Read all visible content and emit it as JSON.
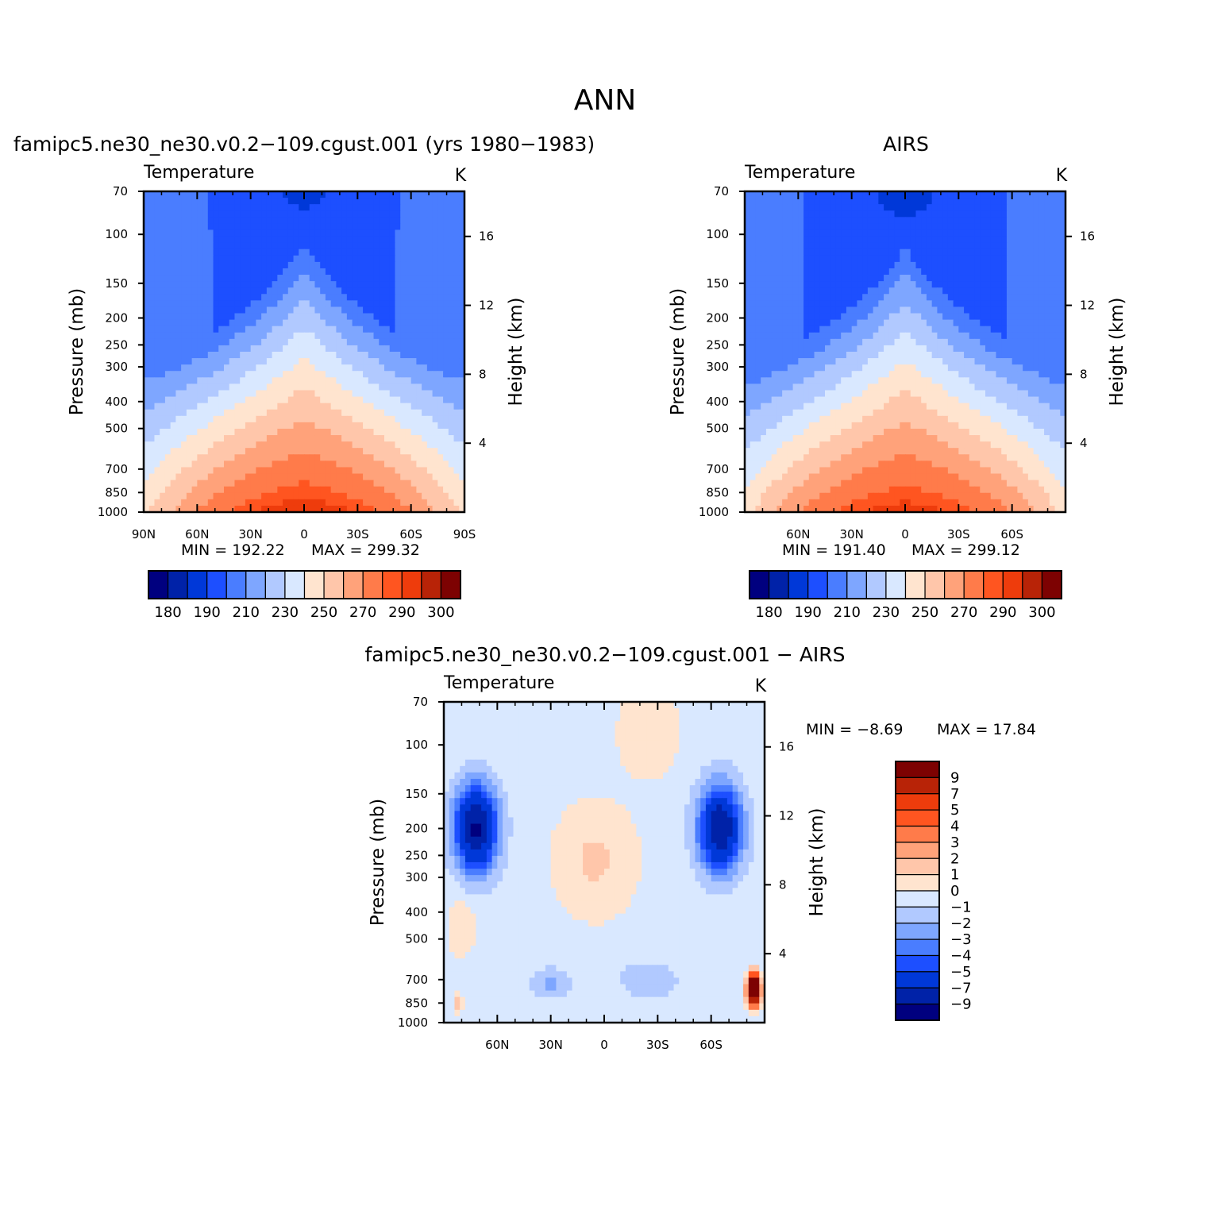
{
  "figure_title": "ANN",
  "chart_data": [
    {
      "type": "heatmap",
      "subtitle": "famipc5.ne30_ne30.v0.2−109.cgust.001  (yrs  1980−1983)",
      "panel_label": "Temperature",
      "units": "K",
      "xlabel": "",
      "ylabel": "Pressure  (mb)",
      "ylabel_right": "Height  (km)",
      "x_ticks": [
        "90N",
        "60N",
        "30N",
        "0",
        "30S",
        "60S",
        "90S"
      ],
      "x_tick_values": [
        90,
        60,
        30,
        0,
        -30,
        -60,
        -90
      ],
      "xlim": [
        90,
        -90
      ],
      "pressure_ticks": [
        70,
        100,
        150,
        200,
        250,
        300,
        400,
        500,
        700,
        850,
        1000
      ],
      "pressure_tick_labels": [
        "70",
        "100",
        "150",
        "200",
        "250",
        "300",
        "400",
        "500",
        "700",
        "850",
        "1000"
      ],
      "height_ticks": [
        16,
        12,
        8,
        4
      ],
      "height_tick_labels": [
        "16",
        "12",
        "8",
        "4"
      ],
      "ylim": [
        1000,
        70
      ],
      "levels": [
        180,
        190,
        200,
        210,
        220,
        230,
        240,
        250,
        260,
        270,
        280,
        290,
        295,
        300
      ],
      "field": {
        "t_bottom": 299,
        "t_tropopause": 205,
        "t_top": 197,
        "tropo_poleward": 218
      },
      "stats": {
        "min_label": "MIN  =  192.22",
        "max_label": "MAX  =  299.32",
        "min": 192.22,
        "max": 299.32
      }
    },
    {
      "type": "heatmap",
      "subtitle": "AIRS",
      "panel_label": "Temperature",
      "units": "K",
      "xlabel": "",
      "ylabel": "Pressure  (mb)",
      "ylabel_right": "Height  (km)",
      "x_ticks": [
        "60N",
        "30N",
        "0",
        "30S",
        "60S"
      ],
      "x_tick_values": [
        60,
        30,
        0,
        -30,
        -60
      ],
      "xlim": [
        90,
        -90
      ],
      "pressure_ticks": [
        70,
        100,
        150,
        200,
        250,
        300,
        400,
        500,
        700,
        850,
        1000
      ],
      "pressure_tick_labels": [
        "70",
        "100",
        "150",
        "200",
        "250",
        "300",
        "400",
        "500",
        "700",
        "850",
        "1000"
      ],
      "height_ticks": [
        16,
        12,
        8,
        4
      ],
      "height_tick_labels": [
        "16",
        "12",
        "8",
        "4"
      ],
      "ylim": [
        1000,
        70
      ],
      "levels": [
        180,
        190,
        200,
        210,
        220,
        230,
        240,
        250,
        260,
        270,
        280,
        290,
        295,
        300
      ],
      "field": {
        "t_bottom": 298,
        "t_tropopause": 204,
        "t_top": 196,
        "tropo_poleward": 216
      },
      "stats": {
        "min_label": "MIN  =  191.40",
        "max_label": "MAX  =  299.12",
        "min": 191.4,
        "max": 299.12
      }
    },
    {
      "type": "heatmap",
      "subtitle": "famipc5.ne30_ne30.v0.2−109.cgust.001  −  AIRS",
      "panel_label": "Temperature",
      "units": "K",
      "xlabel": "",
      "ylabel": "Pressure  (mb)",
      "ylabel_right": "Height  (km)",
      "x_ticks": [
        "60N",
        "30N",
        "0",
        "30S",
        "60S"
      ],
      "x_tick_values": [
        60,
        30,
        0,
        -30,
        -60
      ],
      "xlim": [
        90,
        -90
      ],
      "pressure_ticks": [
        70,
        100,
        150,
        200,
        250,
        300,
        400,
        500,
        700,
        850,
        1000
      ],
      "pressure_tick_labels": [
        "70",
        "100",
        "150",
        "200",
        "250",
        "300",
        "400",
        "500",
        "700",
        "850",
        "1000"
      ],
      "height_ticks": [
        16,
        12,
        8,
        4
      ],
      "height_tick_labels": [
        "16",
        "12",
        "8",
        "4"
      ],
      "ylim": [
        1000,
        70
      ],
      "levels": [
        -9,
        -7,
        -5,
        -4,
        -3,
        -2,
        -1,
        0,
        1,
        2,
        3,
        4,
        5,
        7,
        9
      ],
      "features": [
        {
          "lat": 72,
          "p": 200,
          "amp": -9.0,
          "wlat": 12,
          "wp": 0.35
        },
        {
          "lat": -65,
          "p": 200,
          "amp": -8.5,
          "wlat": 12,
          "wp": 0.35
        },
        {
          "lat": 5,
          "p": 260,
          "amp": 1.6,
          "wlat": 22,
          "wp": 0.45
        },
        {
          "lat": -25,
          "p": 90,
          "amp": 1.4,
          "wlat": 16,
          "wp": 0.35
        },
        {
          "lat": 30,
          "p": 720,
          "amp": -1.8,
          "wlat": 12,
          "wp": 0.12
        },
        {
          "lat": -25,
          "p": 700,
          "amp": -1.6,
          "wlat": 16,
          "wp": 0.15
        },
        {
          "lat": 80,
          "p": 450,
          "amp": 1.2,
          "wlat": 8,
          "wp": 0.25
        },
        {
          "lat": -84,
          "p": 760,
          "amp": 17.8,
          "wlat": 3.5,
          "wp": 0.12
        },
        {
          "lat": 82,
          "p": 850,
          "amp": 2.5,
          "wlat": 2.5,
          "wp": 0.07
        }
      ],
      "stats": {
        "min_label": "MIN  =     −8.69",
        "max_label": "MAX  =     17.84",
        "min": -8.69,
        "max": 17.84
      },
      "colorbar_labels": [
        "9",
        "7",
        "5",
        "4",
        "3",
        "2",
        "1",
        "0",
        "−1",
        "−2",
        "−3",
        "−4",
        "−5",
        "−7",
        "−9"
      ]
    }
  ],
  "colorbar_top": {
    "labels": [
      "180",
      "190",
      "210",
      "230",
      "250",
      "270",
      "290",
      "300"
    ]
  },
  "colors": {
    "abs_palette": [
      "#00007f",
      "#0022a8",
      "#0038d8",
      "#1d4fff",
      "#4a7dff",
      "#7ea6ff",
      "#b1c9ff",
      "#d9e8ff",
      "#ffe4cf",
      "#ffc6aa",
      "#ffa27a",
      "#ff7b4a",
      "#ff5520",
      "#ee3c0c",
      "#b82307",
      "#7d0202"
    ],
    "diff_palette": [
      "#00007f",
      "#0022a8",
      "#0038d8",
      "#1d4fff",
      "#4a7dff",
      "#7ea6ff",
      "#b1c9ff",
      "#d9e8ff",
      "#ffe4cf",
      "#ffc6aa",
      "#ffa27a",
      "#ff7b4a",
      "#ff5520",
      "#ee3c0c",
      "#b82307",
      "#7d0202"
    ]
  }
}
